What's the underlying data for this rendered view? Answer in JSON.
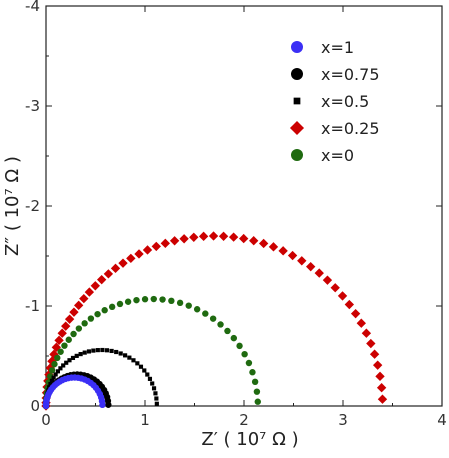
{
  "chart_data": {
    "type": "scatter",
    "xlabel": "Z′ ( 10⁷ Ω )",
    "ylabel": "Z″ ( 10⁷ Ω )",
    "xlim": [
      0,
      4
    ],
    "ylim": [
      0,
      -4
    ],
    "x_ticks": [
      "0",
      "1",
      "2",
      "3",
      "4"
    ],
    "y_ticks": [
      "0",
      "-1",
      "-2",
      "-3",
      "-4"
    ],
    "x_tick_values": [
      0,
      1,
      2,
      3,
      4
    ],
    "y_tick_values": [
      0,
      -1,
      -2,
      -3,
      -4
    ],
    "grid": false,
    "legend_position": "top-right",
    "series": [
      {
        "name": "x=1",
        "color": "#3b2ff5",
        "marker": "circle",
        "center": 0.285,
        "radius": 0.285,
        "n_points": 30
      },
      {
        "name": "x=0.75",
        "color": "#000000",
        "marker": "circle",
        "center": 0.315,
        "radius": 0.315,
        "n_points": 32
      },
      {
        "name": "x=0.5",
        "color": "#000000",
        "marker": "square",
        "center": 0.56,
        "radius": 0.56,
        "n_points": 42
      },
      {
        "name": "x=0.25",
        "color": "#cc0000",
        "marker": "diamond",
        "center": 1.7,
        "radius": 1.7,
        "n_points": 58
      },
      {
        "name": "x=0",
        "color": "#1f6a10",
        "marker": "circle",
        "center": 1.07,
        "radius": 1.07,
        "n_points": 42
      }
    ]
  }
}
